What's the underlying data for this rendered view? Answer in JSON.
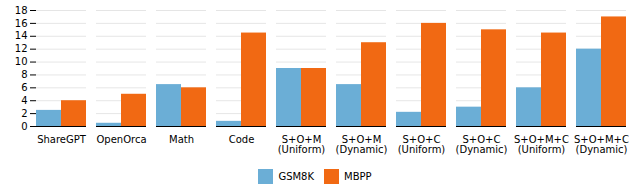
{
  "chart_data": {
    "type": "bar",
    "categories": [
      "ShareGPT",
      "OpenOrca",
      "Math",
      "Code",
      "S+O+M\n(Uniform)",
      "S+O+M\n(Dynamic)",
      "S+O+C\n(Uniform)",
      "S+O+C\n(Dynamic)",
      "S+O+M+C\n(Uniform)",
      "S+O+M+C\n(Dynamic)"
    ],
    "series": [
      {
        "name": "GSM8K",
        "color": "#6baed6",
        "values": [
          2.5,
          0.5,
          6.5,
          0.8,
          9.0,
          6.5,
          2.2,
          3.0,
          6.0,
          12.0
        ]
      },
      {
        "name": "MBPP",
        "color": "#f16913",
        "values": [
          4.0,
          5.0,
          6.0,
          14.5,
          9.0,
          13.0,
          16.0,
          15.0,
          14.5,
          17.0
        ]
      }
    ],
    "ylim": [
      0,
      18
    ],
    "yticks": [
      0,
      2,
      4,
      6,
      8,
      10,
      12,
      14,
      16,
      18
    ],
    "grid": true,
    "legend": "bottom"
  }
}
